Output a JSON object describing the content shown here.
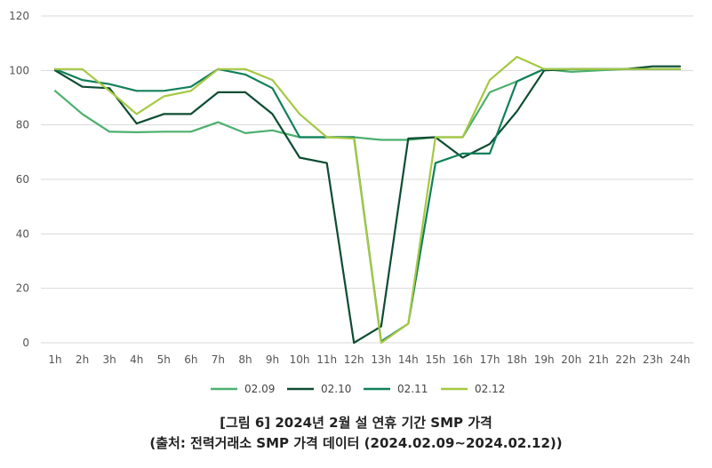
{
  "chart_data": {
    "type": "line",
    "categories": [
      "1h",
      "2h",
      "3h",
      "4h",
      "5h",
      "6h",
      "7h",
      "8h",
      "9h",
      "10h",
      "11h",
      "12h",
      "13h",
      "14h",
      "15h",
      "16h",
      "17h",
      "18h",
      "19h",
      "20h",
      "21h",
      "22h",
      "23h",
      "24h"
    ],
    "ylim": [
      0,
      120
    ],
    "yticks": [
      0,
      20,
      40,
      60,
      80,
      100,
      120
    ],
    "grid": true,
    "legend_position": "bottom",
    "series": [
      {
        "name": "02.09",
        "color": "#4caf6e",
        "values": [
          92.5,
          84,
          77.5,
          77.3,
          77.5,
          77.5,
          81,
          77,
          78,
          75.5,
          75.5,
          75.5,
          74.5,
          74.5,
          75.5,
          75.5,
          92,
          96,
          100.5,
          99.5,
          100,
          100.5,
          100.5,
          100.5
        ]
      },
      {
        "name": "02.10",
        "color": "#0d4d32",
        "values": [
          100,
          94,
          93.5,
          80.5,
          84,
          84,
          92,
          92,
          84,
          68,
          66,
          0,
          6,
          75,
          75.5,
          68,
          73,
          85,
          100,
          100.5,
          100.5,
          100.5,
          101.5,
          101.5
        ]
      },
      {
        "name": "02.11",
        "color": "#11805a",
        "values": [
          100.5,
          96.5,
          95,
          92.5,
          92.5,
          94,
          100.5,
          98.5,
          93.5,
          75.5,
          75.5,
          75.5,
          0.5,
          7,
          66,
          69.5,
          69.5,
          96,
          100.5,
          100.5,
          100.5,
          100.5,
          100.5,
          100.5
        ]
      },
      {
        "name": "02.12",
        "color": "#a6c843",
        "values": [
          100.5,
          100.5,
          92.5,
          84,
          90.5,
          92.5,
          100.5,
          100.5,
          96.5,
          84,
          75.5,
          75,
          0,
          7,
          75.5,
          75.5,
          96.5,
          105,
          100.5,
          100.5,
          100.5,
          100.5,
          100.5,
          100.5
        ]
      }
    ]
  },
  "caption": {
    "line1": "[그림 6] 2024년 2월 설 연휴 기간 SMP 가격",
    "line2": "(출처: 전력거래소 SMP 가격 데이터 (2024.02.09~2024.02.12))"
  }
}
